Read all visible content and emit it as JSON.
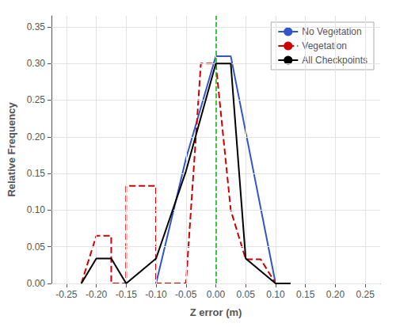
{
  "chart_data": {
    "type": "line",
    "xlabel": "Z error (m)",
    "ylabel": "Relative Frequency",
    "xlim": [
      -0.275,
      0.275
    ],
    "ylim": [
      0.0,
      0.365
    ],
    "xticks": [
      -0.25,
      {
        "value": -0.2,
        "label": "-0.20"
      },
      -0.15,
      {
        "value": -0.1,
        "label": "-0.10"
      },
      -0.05,
      {
        "value": 0.0,
        "label": "0.00"
      },
      0.05,
      {
        "value": 0.1,
        "label": "0.10"
      },
      0.15,
      {
        "value": 0.2,
        "label": "0.20"
      },
      0.25
    ],
    "yticks": [
      {
        "value": 0.0,
        "label": "0.00"
      },
      0.05,
      {
        "value": 0.1,
        "label": "0.10"
      },
      0.15,
      {
        "value": 0.2,
        "label": "0.20"
      },
      0.25,
      {
        "value": 0.3,
        "label": "0.30"
      },
      0.35
    ],
    "grid": true,
    "legend": "upper right",
    "vlines": [
      {
        "x": 0.0,
        "color": "#00bb00",
        "line_style": "dashed"
      }
    ],
    "series": [
      {
        "name": "No Vegetation",
        "color": "#3355cc",
        "line_style": "solid",
        "x": [
          -0.1,
          -0.1,
          -0.05,
          0.0,
          0.025,
          0.025,
          0.1,
          0.1
        ],
        "values": [
          0.0,
          0.0,
          0.17,
          0.31,
          0.31,
          0.31,
          0.0,
          0.0
        ]
      },
      {
        "name": "Vegetation",
        "color": "#cc0000",
        "line_style": "dashed",
        "x": [
          -0.225,
          -0.2,
          -0.175,
          -0.175,
          -0.15,
          -0.15,
          -0.1,
          -0.1,
          -0.05,
          -0.025,
          0.0,
          0.025,
          0.05,
          0.075,
          0.1,
          0.125
        ],
        "values": [
          0.0,
          0.065,
          0.065,
          0.0,
          0.0,
          0.133,
          0.133,
          0.0,
          0.0,
          0.3,
          0.3,
          0.1,
          0.033,
          0.033,
          0.0,
          0.0
        ]
      },
      {
        "name": "All Checkpoints",
        "color": "#000000",
        "line_style": "solid",
        "x": [
          -0.225,
          -0.2,
          -0.175,
          -0.15,
          -0.1,
          -0.05,
          0.0,
          0.025,
          0.05,
          0.075,
          0.1,
          0.125
        ],
        "values": [
          0.0,
          0.034,
          0.034,
          0.0,
          0.034,
          0.153,
          0.3,
          0.3,
          0.034,
          0.017,
          0.0,
          0.0
        ]
      }
    ]
  }
}
